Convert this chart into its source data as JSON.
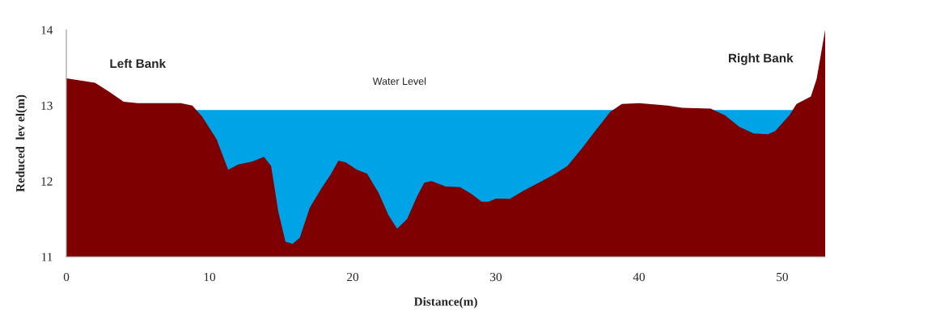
{
  "chart_data": {
    "type": "area",
    "xlabel": "Distance(m)",
    "ylabel": "Reduced  lev el(m)",
    "xlim": [
      0,
      53
    ],
    "xticks": [
      0,
      10,
      20,
      30,
      40,
      50
    ],
    "ylim": [
      11,
      14
    ],
    "yticks": [
      11,
      12,
      13,
      14
    ],
    "grid": false,
    "legend": false,
    "series": [
      {
        "color": "#00a3e6",
        "x": [
          0,
          53
        ],
        "values": [
          12.94,
          12.94
        ]
      },
      {
        "color": "#7f0000",
        "x": [
          0,
          1,
          2,
          3,
          4,
          5,
          6,
          8,
          8.8,
          9.5,
          10.5,
          11.3,
          12,
          13,
          13.8,
          14.3,
          14.8,
          15.3,
          15.8,
          16.3,
          17,
          17.8,
          18.5,
          19,
          19.5,
          20.3,
          21,
          21.8,
          22.5,
          23.1,
          23.8,
          24.5,
          25,
          25.5,
          26.5,
          27.5,
          28.3,
          29,
          29.5,
          30,
          31,
          32,
          33,
          34,
          35,
          36,
          37,
          38,
          38.8,
          40,
          42,
          43,
          45,
          46,
          47,
          48,
          49,
          49.5,
          50.5,
          51,
          52,
          52.4,
          53
        ],
        "values": [
          13.36,
          13.33,
          13.3,
          13.18,
          13.05,
          13.03,
          13.03,
          13.03,
          13.0,
          12.85,
          12.55,
          12.15,
          12.22,
          12.26,
          12.32,
          12.2,
          11.6,
          11.2,
          11.17,
          11.25,
          11.65,
          11.9,
          12.1,
          12.27,
          12.25,
          12.15,
          12.1,
          11.85,
          11.55,
          11.37,
          11.5,
          11.8,
          11.98,
          12.0,
          11.93,
          11.92,
          11.83,
          11.73,
          11.73,
          11.77,
          11.77,
          11.88,
          11.98,
          12.08,
          12.2,
          12.43,
          12.68,
          12.92,
          13.02,
          13.03,
          13.0,
          12.97,
          12.96,
          12.87,
          12.72,
          12.63,
          12.62,
          12.66,
          12.87,
          13.02,
          13.12,
          13.35,
          14.0
        ]
      }
    ],
    "annotations": [
      "Left Bank",
      "Water Level",
      "Right Bank"
    ]
  }
}
